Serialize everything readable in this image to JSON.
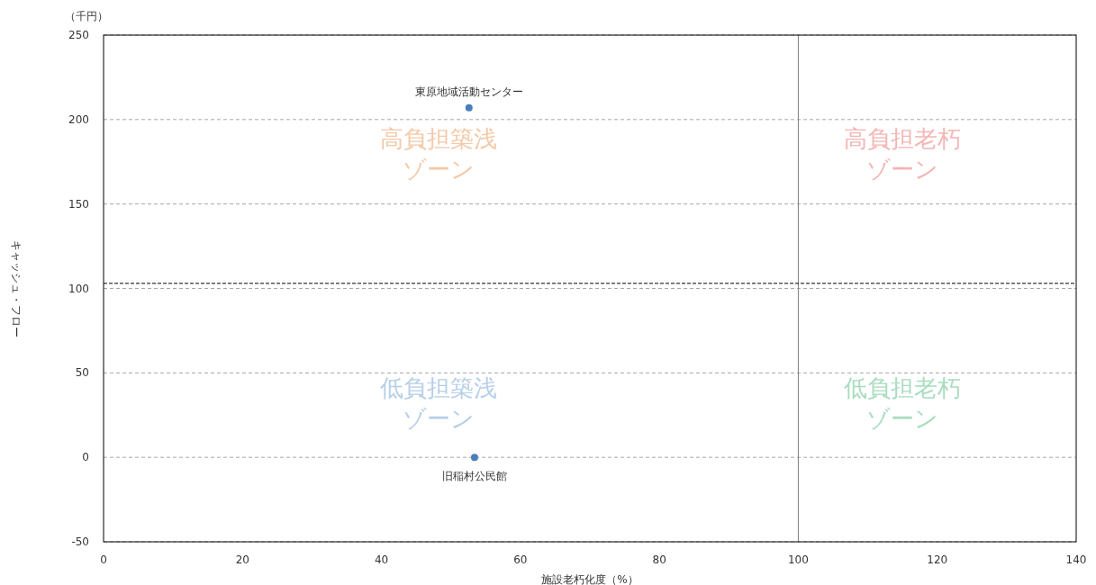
{
  "chart_data": {
    "type": "scatter",
    "xlabel": "施設老朽化度（%）",
    "ylabel": "キャッシュ・フロー",
    "x": [
      52.6,
      53.4
    ],
    "series": [
      {
        "color": "#4a7ebb",
        "values": [
          207,
          0
        ]
      }
    ],
    "marker": "circle",
    "xlim": [
      0,
      140
    ],
    "xticks": [
      0,
      20,
      40,
      60,
      80,
      100,
      120,
      140
    ],
    "ylim": [
      -50,
      250
    ],
    "yticks": [
      -50,
      0,
      50,
      100,
      150,
      200,
      250
    ],
    "grid": "y",
    "ref_lines": [
      {
        "axis": "x",
        "value": 100,
        "color": "#808080",
        "line_style": "solid"
      },
      {
        "axis": "y",
        "value": 103,
        "color": "#000000",
        "line_style": "dashed"
      }
    ],
    "annotations": [
      "（千円）",
      "高負担築浅",
      "ゾーン",
      "高負担老朽",
      "ゾーン",
      "低負担築浅",
      "ゾーン",
      "低負担老朽",
      "ゾーン",
      {
        "text": "東原地域活動センター",
        "x": 52.6,
        "y": 207
      },
      {
        "text": "旧稲村公民館",
        "x": 53.4,
        "y": 0
      }
    ]
  }
}
